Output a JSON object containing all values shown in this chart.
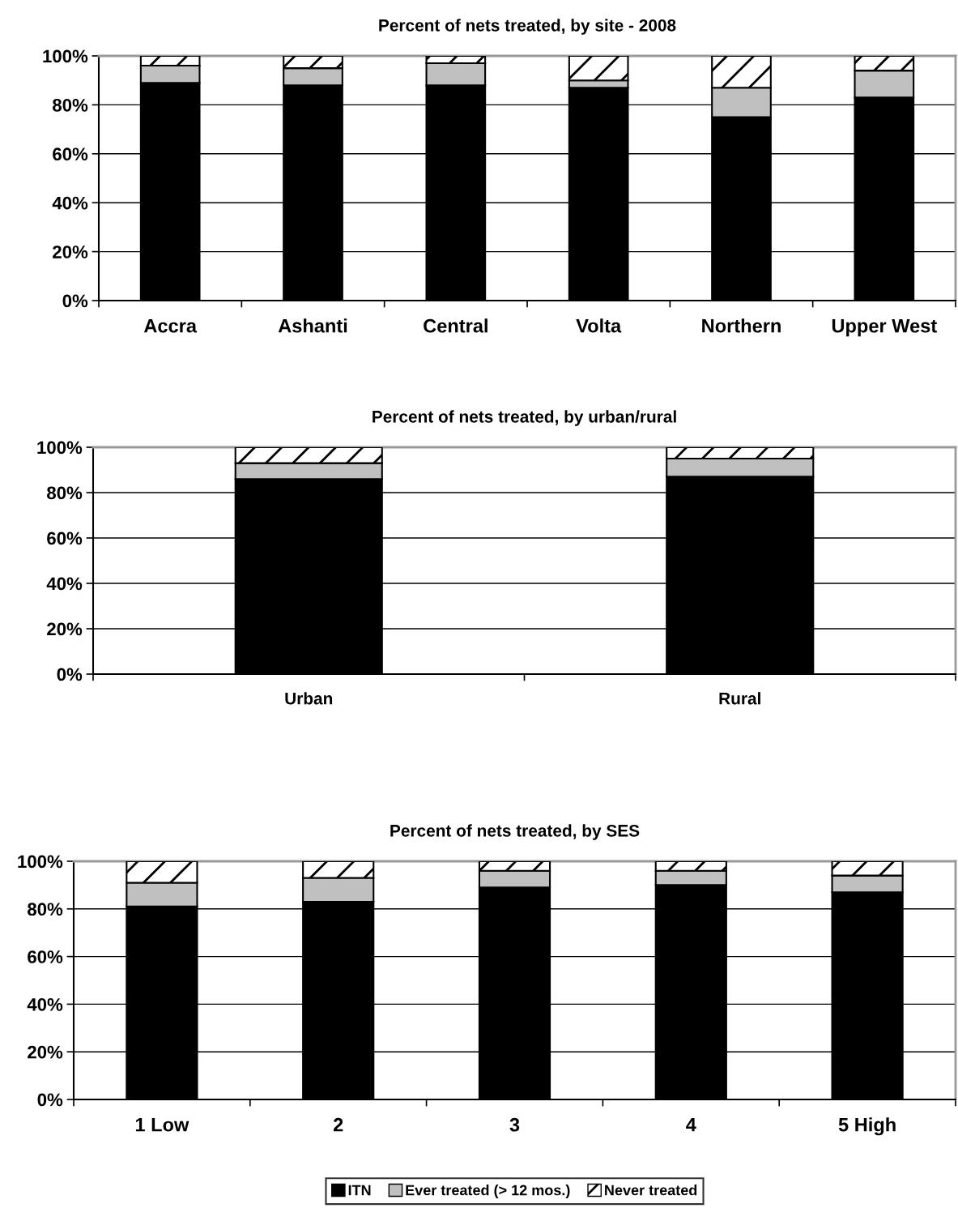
{
  "chart_data": [
    {
      "type": "bar",
      "stacked": true,
      "title": "Percent of nets treated, by site - 2008",
      "categories": [
        "Accra",
        "Ashanti",
        "Central",
        "Volta",
        "Northern",
        "Upper West"
      ],
      "ylim": [
        0,
        100
      ],
      "yticks": [
        {
          "value": 0,
          "label": "0%"
        },
        {
          "value": 20,
          "label": "20%"
        },
        {
          "value": 40,
          "label": "40%"
        },
        {
          "value": 60,
          "label": "60%"
        },
        {
          "value": 80,
          "label": "80%"
        },
        {
          "value": 100,
          "label": "100%"
        }
      ],
      "grid": "y",
      "legend": false,
      "series": [
        {
          "color": "#000000",
          "values": [
            89,
            88,
            88,
            87,
            75,
            83
          ]
        },
        {
          "color": "#c0c0c0",
          "values": [
            7,
            7,
            9,
            3,
            12,
            11
          ]
        },
        {
          "color": "#ffffff",
          "values": [
            4,
            5,
            3,
            10,
            13,
            6
          ]
        }
      ]
    },
    {
      "type": "bar",
      "stacked": true,
      "title": "Percent of nets treated, by urban/rural",
      "categories": [
        "Urban",
        "Rural"
      ],
      "ylim": [
        0,
        100
      ],
      "yticks": [
        {
          "value": 0,
          "label": "0%"
        },
        {
          "value": 20,
          "label": "20%"
        },
        {
          "value": 40,
          "label": "40%"
        },
        {
          "value": 60,
          "label": "60%"
        },
        {
          "value": 80,
          "label": "80%"
        },
        {
          "value": 100,
          "label": "100%"
        }
      ],
      "grid": "y",
      "legend": false,
      "series": [
        {
          "color": "#000000",
          "values": [
            86,
            87
          ]
        },
        {
          "color": "#c0c0c0",
          "values": [
            7,
            8
          ]
        },
        {
          "color": "#ffffff",
          "values": [
            7,
            5
          ]
        }
      ]
    },
    {
      "type": "bar",
      "stacked": true,
      "title": "Percent of nets treated, by SES",
      "categories": [
        "1 Low",
        "2",
        "3",
        "4",
        "5 High"
      ],
      "ylim": [
        0,
        100
      ],
      "yticks": [
        {
          "value": 0,
          "label": "0%"
        },
        {
          "value": 20,
          "label": "20%"
        },
        {
          "value": 40,
          "label": "40%"
        },
        {
          "value": 60,
          "label": "60%"
        },
        {
          "value": 80,
          "label": "80%"
        },
        {
          "value": 100,
          "label": "100%"
        }
      ],
      "grid": "y",
      "legend": "bottom",
      "series": [
        {
          "name": "ITN",
          "color": "#000000",
          "values": [
            81,
            83,
            89,
            90,
            87
          ]
        },
        {
          "name": "Ever treated (> 12 mos.)",
          "color": "#c0c0c0",
          "values": [
            10,
            10,
            7,
            6,
            7
          ]
        },
        {
          "name": "Never treated",
          "color": "#ffffff",
          "values": [
            9,
            7,
            4,
            4,
            6
          ]
        }
      ]
    }
  ]
}
